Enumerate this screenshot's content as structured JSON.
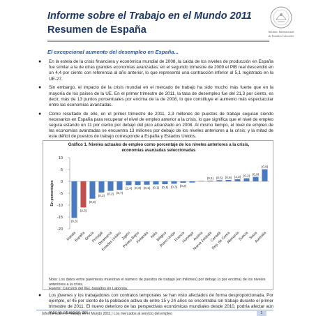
{
  "header": {
    "title": "Informe sobre el Trabajo en el Mundo 2011",
    "subtitle": "Resumen de España"
  },
  "logo": {
    "line1": "Instituto Internacional",
    "line2": "de Estudios Laborales"
  },
  "section": {
    "title": "El excepcional aumento del desempleo en España..."
  },
  "bullets": [
    "En la estela de la crisis financiera y económica mundial de 2008, la caída de los niveles de producción en España fue similar a la de otras grandes economías avanzadas: en el segundo trimestre de 2009 el PIB real descendió en un 4,4 por ciento con referencia al año anterior, lo que representó una contracción inferior al 5,1 registrado en la UE-27.",
    "Sin embargo, el impacto de la crisis mundial en el mercado de trabajo ha sido mucho más fuerte que en la mayoría de los países de la UE. En el primer trimestre de 2011, la tasa de desempleo fue del 21,3 por ciento, es decir, más de 13 puntos porcentuales por encima de la de 2008, lo que constituye el aumento más espectacular entre las economías avanzadas.",
    "Como resultado de ello, en el primer trimestre de 2011, 2,3 millones de puestos de trabajo seguían siendo necesarios en España para recuperar el nivel de empleo anterior a la crisis, lo que significa que el nivel de empleo seguía estando un 11 por ciento por debajo del pico alcanzado en 2008. Al mismo tiempo, el nivel de empleo de las economías avanzadas se encuentra 13 millones por debajo de los niveles anteriores a la crisis; y la mitad de este déficit de puestos de trabajo corresponde a España y Estados Unidos."
  ],
  "chart_title_line1": "Gráfico 1. Niveles actuales de empleo como porcentaje de los niveles anteriores a la crisis,",
  "chart_title_line2": "economías avanzadas seleccionadas",
  "chart_note": "Nota: Los datos entre paréntesis muestran el número de puestos de trabajo (en millones) por debajo (o por encima) de los niveles anteriores a la crisis.",
  "chart_source": "Fuente: Cálculos del IIEL basados en Laborsta.",
  "chart_data": {
    "type": "bar",
    "title": "Gráfico 1. Niveles actuales de empleo como porcentaje de los niveles anteriores a la crisis, economías avanzadas seleccionadas",
    "ylabel": "En porcentajes",
    "ylim": [
      -20,
      10
    ],
    "yticks": [
      10,
      5,
      0,
      -5,
      -10,
      -15,
      -20
    ],
    "categories": [
      "Irlanda",
      "España",
      "Grecia",
      "Portugal",
      "Dinamarca",
      "Estados Unidos",
      "Japón",
      "Países Bajos",
      "Finlandia",
      "Italia",
      "Bélgica",
      "Reino Unido",
      "Francia",
      "Noruega",
      "Austria",
      "Nueva Zelanda",
      "Canadá",
      "Rep. de Corea",
      "Alemania",
      "Suecia",
      "Suiza",
      "Australia"
    ],
    "values": [
      -15.4,
      -11.0,
      -7.3,
      -4.7,
      -4.0,
      -3.6,
      -1.6,
      -1.5,
      -1.4,
      -1.3,
      -1.2,
      -1.0,
      -0.6,
      -0.5,
      0.2,
      0.3,
      0.5,
      0.6,
      0.9,
      1.3,
      1.9,
      5.1
    ],
    "labels": [
      "(0,3)",
      "(2,3)",
      "(0,3)",
      "(0,2)",
      "(0,2)",
      "(6,7)",
      "(2,4)",
      "(0,3)",
      "(0,1)",
      "(0,1)",
      "(0,1)",
      "(0,3)",
      "(0,2)",
      "",
      "",
      "(0,1)",
      "(0,5)",
      "(0,6)",
      "(1,3)",
      "(0,2)",
      "(0,9)",
      "(0,9)"
    ],
    "colors": {
      "bar": "#4a7bc1",
      "highlight": "#c0504d"
    },
    "highlight_index": 1
  },
  "bullet2": "Los jóvenes y los trabajadores con contratos temporales se han visto afectados de forma desproporcionada. Por ejemplo, el 45 por ciento de la población activa de entre 15 y 24 años se encontraba sin trabajo durante el primer trimestre de 2011. El nuevo deterioro de las perspectivas económicas mundiales desde 2010, podría afectar aún más la situación del",
  "footer": {
    "text": "Informe sobre el Trabajo en el Mundo 2011 | Los mercados al servicio del empleo",
    "page": "1"
  }
}
